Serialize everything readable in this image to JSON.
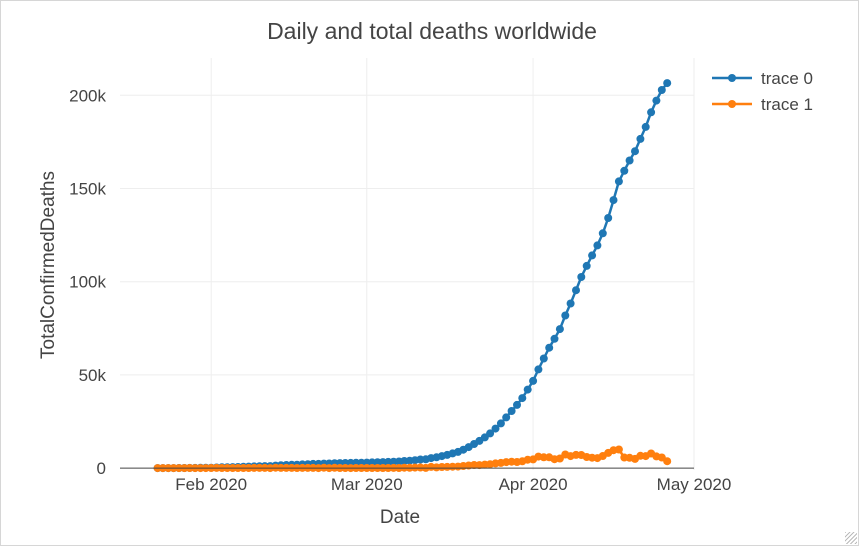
{
  "chart_data": {
    "type": "line",
    "title": "Daily and total deaths worldwide",
    "xlabel": "Date",
    "ylabel": "TotalConfirmedDeaths",
    "x_start": "2020-01-22",
    "x_ticks": [
      {
        "label": "Feb 2020",
        "date": "2020-02-01"
      },
      {
        "label": "Mar 2020",
        "date": "2020-03-01"
      },
      {
        "label": "Apr 2020",
        "date": "2020-04-01"
      },
      {
        "label": "May 2020",
        "date": "2020-05-01"
      }
    ],
    "y_ticks": [
      {
        "label": "0",
        "value": 0
      },
      {
        "label": "50k",
        "value": 50000
      },
      {
        "label": "100k",
        "value": 100000
      },
      {
        "label": "150k",
        "value": 150000
      },
      {
        "label": "200k",
        "value": 200000
      }
    ],
    "xlim": [
      "2020-01-15",
      "2020-05-01"
    ],
    "ylim": [
      -1000,
      220000
    ],
    "legend_position": "top-right",
    "grid": true,
    "series": [
      {
        "name": "trace 0",
        "color": "#1f77b4",
        "values": [
          17,
          18,
          26,
          42,
          56,
          82,
          131,
          133,
          171,
          213,
          259,
          362,
          426,
          492,
          564,
          634,
          719,
          806,
          906,
          1013,
          1113,
          1118,
          1371,
          1523,
          1666,
          1770,
          1868,
          2007,
          2122,
          2247,
          2251,
          2458,
          2469,
          2629,
          2708,
          2770,
          2814,
          2872,
          2941,
          2996,
          3085,
          3160,
          3254,
          3348,
          3460,
          3558,
          3802,
          3988,
          4262,
          4615,
          4720,
          5404,
          5819,
          6440,
          7126,
          7905,
          8733,
          9867,
          11299,
          12973,
          14623,
          16497,
          18615,
          21181,
          23970,
          27198,
          30652,
          33925,
          37582,
          42107,
          46809,
          52983,
          58787,
          64606,
          69374,
          74565,
          81865,
          88338,
          95455,
          102525,
          108503,
          114090,
          119482,
          125983,
          134177,
          143800,
          153822,
          159510,
          165044,
          169986,
          176583,
          183027,
          190858,
          197159,
          202846,
          206544
        ]
      },
      {
        "name": "trace 1",
        "color": "#ff7f0e",
        "values": [
          17,
          1,
          8,
          16,
          14,
          26,
          49,
          2,
          38,
          42,
          46,
          103,
          64,
          66,
          72,
          70,
          85,
          87,
          100,
          107,
          100,
          5,
          253,
          152,
          143,
          104,
          98,
          139,
          115,
          125,
          4,
          207,
          11,
          160,
          79,
          62,
          44,
          58,
          69,
          55,
          89,
          75,
          94,
          94,
          112,
          98,
          244,
          186,
          274,
          353,
          105,
          684,
          415,
          621,
          686,
          779,
          828,
          1134,
          1432,
          1674,
          1650,
          1874,
          2118,
          2566,
          2789,
          3228,
          3454,
          3273,
          3657,
          4525,
          4702,
          6174,
          5804,
          5819,
          4768,
          5191,
          7300,
          6473,
          7117,
          7070,
          5978,
          5587,
          5392,
          6501,
          8194,
          9623,
          10022,
          5688,
          5534,
          4942,
          6597,
          6444,
          7831,
          6301,
          5687,
          3698
        ]
      }
    ]
  }
}
